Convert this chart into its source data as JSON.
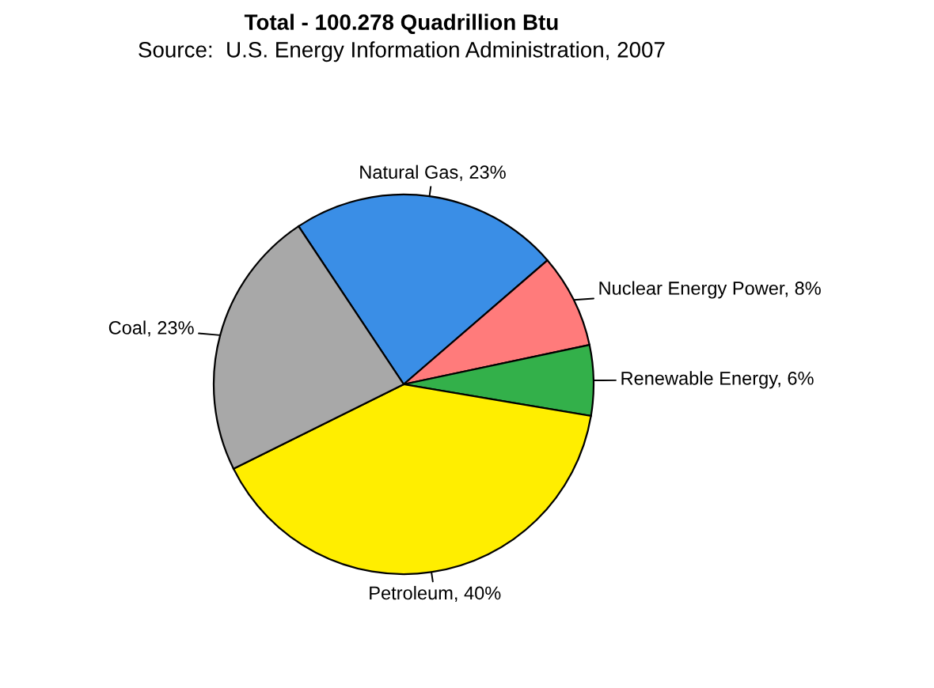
{
  "chart_data": {
    "type": "pie",
    "title": "Total - 100.278 Quadrillion Btu",
    "subtitle": "Source:  U.S. Energy Information Administration, 2007",
    "categories": [
      "Natural Gas",
      "Nuclear Energy Power",
      "Renewable Energy",
      "Petroleum",
      "Coal"
    ],
    "values": [
      23,
      8,
      6,
      40,
      23
    ],
    "value_labels": [
      "23%",
      "8%",
      "6%",
      "40%",
      "23%"
    ],
    "colors": [
      "#3a8ee6",
      "#ff7b7b",
      "#33b04a",
      "#ffee00",
      "#a8a8a8"
    ],
    "legend": false
  }
}
